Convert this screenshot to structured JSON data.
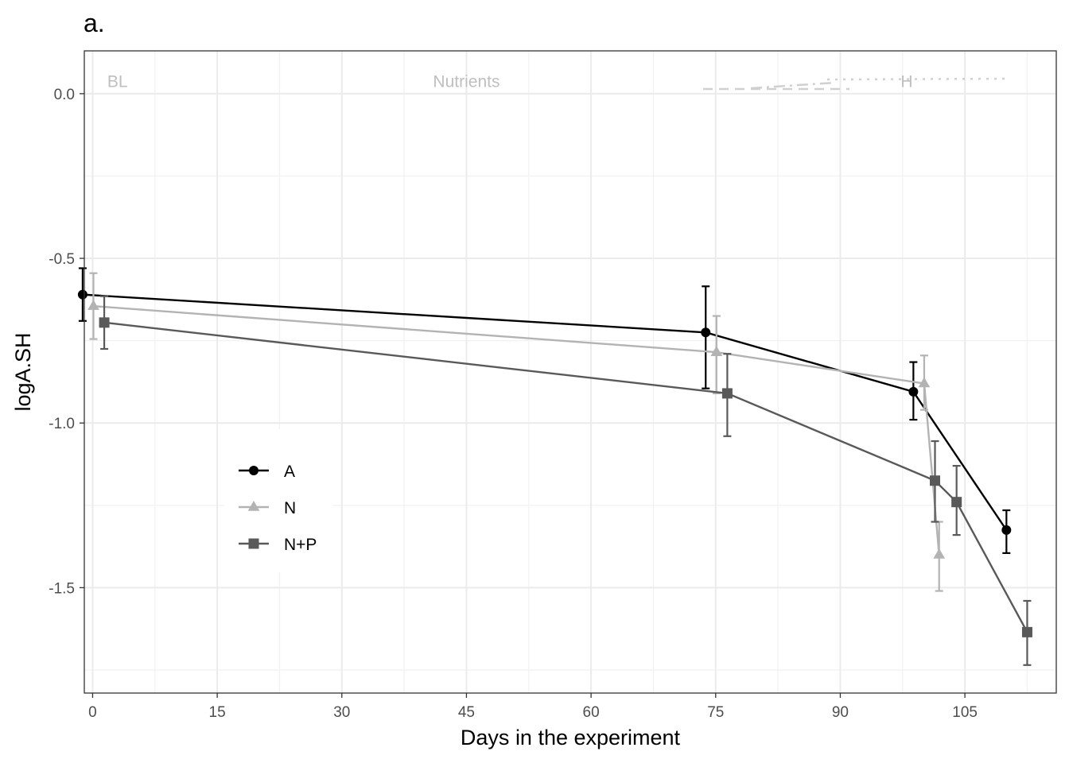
{
  "chart_data": {
    "type": "line",
    "title": "a.",
    "xlabel": "Days in the experiment",
    "ylabel": "logA.SH",
    "xlim": [
      -1,
      116
    ],
    "ylim": [
      -1.82,
      0.13
    ],
    "x_ticks": [
      0,
      15,
      30,
      45,
      60,
      75,
      90,
      105
    ],
    "y_ticks": [
      0.0,
      -0.5,
      -1.0,
      -1.5
    ],
    "y_tick_labels": [
      "0.0",
      "-0.5",
      "-1.0",
      "-1.5"
    ],
    "grid": true,
    "legend_position": "left-center",
    "phase_labels": [
      {
        "text": "BL",
        "x": 3,
        "y": 0.02
      },
      {
        "text": "Nutrients",
        "x": 45,
        "y": 0.02
      },
      {
        "text": "H",
        "x": 98,
        "y": 0.02
      }
    ],
    "series": [
      {
        "name": "A",
        "color": "#000000",
        "marker": "circle",
        "points": [
          {
            "x": -1.2,
            "y": -0.61,
            "lo": -0.69,
            "hi": -0.53
          },
          {
            "x": 73.8,
            "y": -0.725,
            "lo": -0.895,
            "hi": -0.585
          },
          {
            "x": 98.8,
            "y": -0.905,
            "lo": -0.99,
            "hi": -0.815
          },
          {
            "x": 110,
            "y": -1.325,
            "lo": -1.395,
            "hi": -1.265
          }
        ]
      },
      {
        "name": "N",
        "color": "#b3b3b3",
        "marker": "triangle",
        "points": [
          {
            "x": 0.1,
            "y": -0.645,
            "lo": -0.745,
            "hi": -0.545
          },
          {
            "x": 75.1,
            "y": -0.785,
            "lo": -0.91,
            "hi": -0.675
          },
          {
            "x": 100.1,
            "y": -0.88,
            "lo": -0.96,
            "hi": -0.795
          },
          {
            "x": 101.9,
            "y": -1.4,
            "lo": -1.51,
            "hi": -1.3
          }
        ]
      },
      {
        "name": "N+P",
        "color": "#595959",
        "marker": "square",
        "points": [
          {
            "x": 1.4,
            "y": -0.695,
            "lo": -0.775,
            "hi": -0.615
          },
          {
            "x": 76.4,
            "y": -0.91,
            "lo": -1.04,
            "hi": -0.79
          },
          {
            "x": 101.4,
            "y": -1.175,
            "lo": -1.3,
            "hi": -1.055
          },
          {
            "x": 104,
            "y": -1.24,
            "lo": -1.34,
            "hi": -1.13
          },
          {
            "x": 112.5,
            "y": -1.635,
            "lo": -1.735,
            "hi": -1.54
          }
        ]
      }
    ]
  }
}
